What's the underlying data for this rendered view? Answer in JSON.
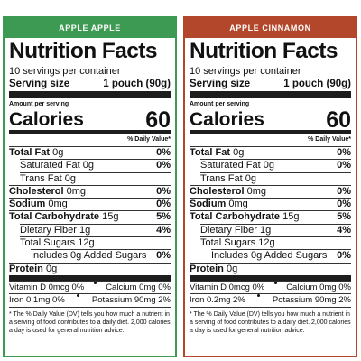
{
  "labels": [
    {
      "header": "APPLE APPLE",
      "color": "#3d9a52",
      "title": "Nutrition Facts",
      "servings": "10 servings per container",
      "serving_size_label": "Serving size",
      "serving_size_value": "1 pouch (90g)",
      "amount_per_serving": "Amount per serving",
      "calories_label": "Calories",
      "calories_value": 60,
      "dv_header": "% Daily Value*",
      "nutrients": [
        {
          "name": "Total Fat",
          "amount": "0g",
          "dv": "0%",
          "sub": [
            {
              "name": "Saturated Fat",
              "amount": "0g",
              "dv": "0%"
            },
            {
              "name": "Trans Fat",
              "amount": "0g"
            }
          ]
        },
        {
          "name": "Cholesterol",
          "amount": "0mg",
          "dv": "0%"
        },
        {
          "name": "Sodium",
          "amount": "0mg",
          "dv": "0%"
        },
        {
          "name": "Total Carbohydrate",
          "amount": "15g",
          "dv": "5%",
          "sub": [
            {
              "name": "Dietary Fiber",
              "amount": "1g",
              "dv": "4%"
            },
            {
              "name": "Total Sugars",
              "amount": "12g",
              "sub": [
                {
                  "name": "Includes 0g Added Sugars",
                  "dv": "0%"
                }
              ]
            }
          ]
        },
        {
          "name": "Protein",
          "amount": "0g"
        }
      ],
      "vitamins": [
        [
          "Vitamin D 0mcg 0%",
          "Calcium 0mg 0%"
        ],
        [
          "Iron 0.1mg 0%",
          "Potassium 90mg 2%"
        ]
      ],
      "footnote": "* The % Daily Value (DV) tells you how much a nutrient in a serving of food contributes to a daily diet. 2,000 calories a day is used for general nutrition advice."
    },
    {
      "header": "APPLE CINNAMON",
      "color": "#b3472b",
      "title": "Nutrition Facts",
      "servings": "10 servings per container",
      "serving_size_label": "Serving size",
      "serving_size_value": "1 pouch (90g)",
      "amount_per_serving": "Amount per serving",
      "calories_label": "Calories",
      "calories_value": 60,
      "dv_header": "% Daily Value*",
      "nutrients": [
        {
          "name": "Total Fat",
          "amount": "0g",
          "dv": "0%",
          "sub": [
            {
              "name": "Saturated Fat",
              "amount": "0g",
              "dv": "0%"
            },
            {
              "name": "Trans Fat",
              "amount": "0g"
            }
          ]
        },
        {
          "name": "Cholesterol",
          "amount": "0mg",
          "dv": "0%"
        },
        {
          "name": "Sodium",
          "amount": "0mg",
          "dv": "0%"
        },
        {
          "name": "Total Carbohydrate",
          "amount": "15g",
          "dv": "5%",
          "sub": [
            {
              "name": "Dietary Fiber",
              "amount": "1g",
              "dv": "4%"
            },
            {
              "name": "Total Sugars",
              "amount": "12g",
              "sub": [
                {
                  "name": "Includes 0g Added Sugars",
                  "dv": "0%"
                }
              ]
            }
          ]
        },
        {
          "name": "Protein",
          "amount": "0g"
        }
      ],
      "vitamins": [
        [
          "Vitamin D 0mcg 0%",
          "Calcium 0mg 0%"
        ],
        [
          "Iron 0.2mg 2%",
          "Potassium 90mg 2%"
        ]
      ],
      "footnote": "* The % Daily Value (DV) tells you how much a nutrient in a serving of food contributes to a daily diet. 2,000 calories a day is used for general nutrition advice."
    }
  ]
}
